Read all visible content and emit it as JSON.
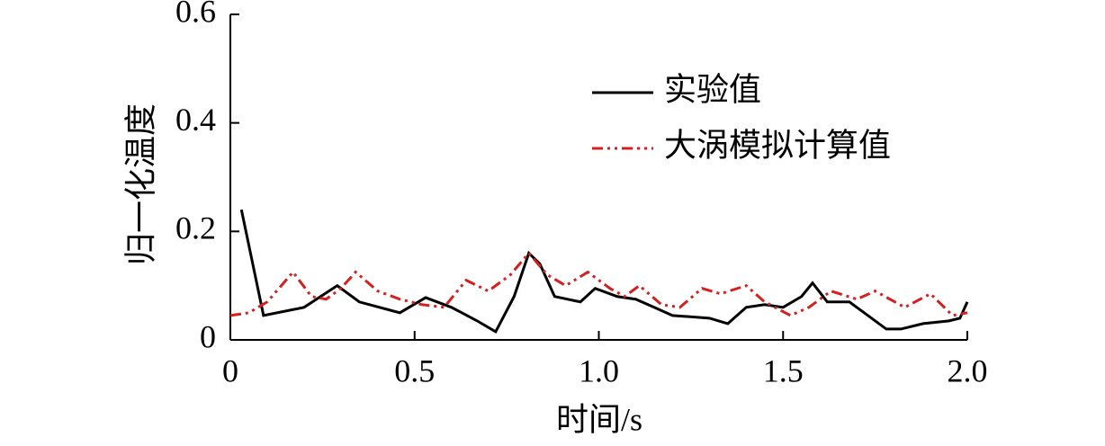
{
  "chart_data": {
    "type": "line",
    "xlabel": "时间/s",
    "ylabel": "归一化温度",
    "xlim": [
      0,
      2.0
    ],
    "ylim": [
      0,
      0.6
    ],
    "xticks": [
      0,
      0.5,
      {
        "value": 1.0,
        "label": "1.0"
      },
      1.5,
      {
        "value": 2.0,
        "label": "2.0"
      }
    ],
    "yticks": [
      0,
      0.2,
      0.4,
      0.6
    ],
    "legend": "upper right",
    "series": [
      {
        "name": "实验值",
        "color": "#000000",
        "style": "solid",
        "x": [
          0.03,
          0.09,
          0.2,
          0.29,
          0.35,
          0.46,
          0.53,
          0.6,
          0.67,
          0.72,
          0.77,
          0.81,
          0.84,
          0.88,
          0.95,
          0.99,
          1.05,
          1.1,
          1.15,
          1.2,
          1.3,
          1.35,
          1.4,
          1.45,
          1.5,
          1.55,
          1.58,
          1.62,
          1.68,
          1.72,
          1.78,
          1.82,
          1.88,
          1.95,
          1.98,
          2.0
        ],
        "values": [
          0.24,
          0.045,
          0.06,
          0.1,
          0.07,
          0.05,
          0.078,
          0.06,
          0.035,
          0.015,
          0.08,
          0.16,
          0.14,
          0.08,
          0.07,
          0.095,
          0.08,
          0.075,
          0.06,
          0.045,
          0.04,
          0.03,
          0.06,
          0.065,
          0.06,
          0.08,
          0.105,
          0.07,
          0.07,
          0.05,
          0.02,
          0.02,
          0.03,
          0.035,
          0.04,
          0.07
        ]
      },
      {
        "name": "大涡模拟计算值",
        "color": "#d42020",
        "style": "dashdotdot",
        "x": [
          0,
          0.05,
          0.1,
          0.17,
          0.22,
          0.26,
          0.3,
          0.34,
          0.4,
          0.46,
          0.52,
          0.58,
          0.64,
          0.7,
          0.76,
          0.81,
          0.86,
          0.91,
          0.97,
          1.03,
          1.07,
          1.11,
          1.17,
          1.22,
          1.28,
          1.33,
          1.4,
          1.45,
          1.52,
          1.57,
          1.63,
          1.7,
          1.75,
          1.83,
          1.9,
          1.96,
          2.0
        ],
        "values": [
          0.045,
          0.05,
          0.07,
          0.125,
          0.08,
          0.075,
          0.095,
          0.125,
          0.09,
          0.075,
          0.065,
          0.06,
          0.11,
          0.09,
          0.12,
          0.16,
          0.12,
          0.1,
          0.125,
          0.095,
          0.08,
          0.1,
          0.065,
          0.06,
          0.095,
          0.085,
          0.1,
          0.07,
          0.045,
          0.06,
          0.09,
          0.075,
          0.09,
          0.06,
          0.085,
          0.045,
          0.05
        ]
      }
    ]
  }
}
